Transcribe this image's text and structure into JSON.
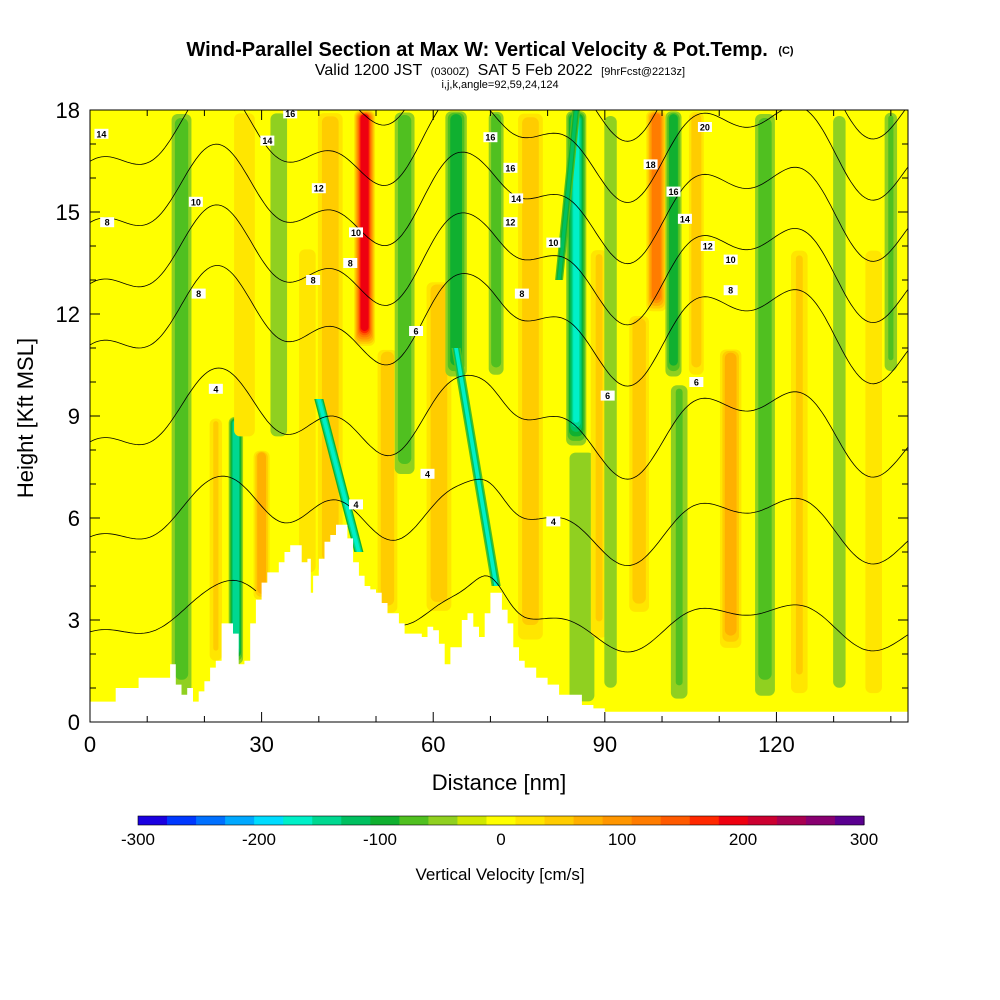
{
  "chart_data": {
    "type": "heatmap",
    "title": "Wind-Parallel Section at Max W: Vertical Velocity & Pot.Temp.",
    "title_tag": "(C)",
    "subtitle": {
      "prefix": "Valid 1200 JST",
      "utc": "(0300Z)",
      "date": "SAT 5 Feb 2022",
      "forecast": "[9hrFcst@2213z]"
    },
    "params_line": "i,j,k,angle=92,59,24,124",
    "xlabel": "Distance [nm]",
    "ylabel": "Height [Kft MSL]",
    "xlim": [
      0,
      143
    ],
    "ylim": [
      0,
      18
    ],
    "x_ticks": [
      "0",
      "30",
      "60",
      "90",
      "120"
    ],
    "y_ticks": [
      "0",
      "3",
      "6",
      "9",
      "12",
      "15",
      "18"
    ],
    "colorbar": {
      "title": "Vertical Velocity [cm/s]",
      "range": [
        -300,
        300
      ],
      "step": 25,
      "tick_labels": [
        "-300",
        "-200",
        "-100",
        "0",
        "100",
        "200",
        "300"
      ],
      "colors": [
        "#1a00e0",
        "#0038ff",
        "#0070ff",
        "#00a8ff",
        "#00dcff",
        "#00f0c8",
        "#00d890",
        "#00c060",
        "#10b030",
        "#50c020",
        "#90d020",
        "#d0e800",
        "#ffff00",
        "#ffe600",
        "#ffcc00",
        "#ffb000",
        "#ff9600",
        "#ff7c00",
        "#ff5a00",
        "#ff2800",
        "#ee0010",
        "#cc0030",
        "#a80050",
        "#880070",
        "#5a0090"
      ]
    },
    "velocity_bands": [
      {
        "x": 16,
        "w": 4,
        "max": -70,
        "bottom": 0.3,
        "top": 18
      },
      {
        "x": 22,
        "w": 3,
        "max": 50,
        "bottom": 1.5,
        "top": 9
      },
      {
        "x": 25.5,
        "w": 2.5,
        "max": -130,
        "bottom": 1.6,
        "top": 9
      },
      {
        "x": 30,
        "w": 3,
        "max": 80,
        "bottom": 3.5,
        "top": 8
      },
      {
        "x": 27,
        "w": 5,
        "max": 40,
        "bottom": 8,
        "top": 18
      },
      {
        "x": 33,
        "w": 4,
        "max": -40,
        "bottom": 8,
        "top": 18
      },
      {
        "x": 38,
        "w": 4,
        "max": 40,
        "bottom": 4,
        "top": 14
      },
      {
        "x": 42,
        "w": 5,
        "max": 60,
        "bottom": 4,
        "top": 18
      },
      {
        "x": 48,
        "w": 3.5,
        "max": 210,
        "bottom": 11,
        "top": 18
      },
      {
        "x": 52,
        "w": 4,
        "max": 60,
        "bottom": 3,
        "top": 11
      },
      {
        "x": 55,
        "w": 4,
        "max": -60,
        "bottom": 7,
        "top": 18
      },
      {
        "x": 61,
        "w": 5,
        "max": 70,
        "bottom": 3,
        "top": 13
      },
      {
        "x": 64,
        "w": 4,
        "max": -80,
        "bottom": 10,
        "top": 18
      },
      {
        "x": 71,
        "w": 3,
        "max": -60,
        "bottom": 10,
        "top": 18
      },
      {
        "x": 77,
        "w": 5,
        "max": 60,
        "bottom": 2,
        "top": 18
      },
      {
        "x": 85,
        "w": 3.5,
        "max": -150,
        "bottom": 8,
        "top": 18
      },
      {
        "x": 86,
        "w": 6,
        "max": -40,
        "bottom": 0.3,
        "top": 8
      },
      {
        "x": 89,
        "w": 4,
        "max": 50,
        "bottom": 2,
        "top": 14
      },
      {
        "x": 91,
        "w": 3,
        "max": -40,
        "bottom": 0.3,
        "top": 18
      },
      {
        "x": 96,
        "w": 4,
        "max": 60,
        "bottom": 3,
        "top": 12
      },
      {
        "x": 99,
        "w": 3.5,
        "max": 130,
        "bottom": 12,
        "top": 18
      },
      {
        "x": 102,
        "w": 3,
        "max": -90,
        "bottom": 10,
        "top": 18
      },
      {
        "x": 103,
        "w": 4,
        "max": -50,
        "bottom": 0.3,
        "top": 10
      },
      {
        "x": 106,
        "w": 3,
        "max": 60,
        "bottom": 10,
        "top": 18
      },
      {
        "x": 112,
        "w": 4,
        "max": 90,
        "bottom": 2,
        "top": 11
      },
      {
        "x": 118,
        "w": 4,
        "max": -60,
        "bottom": 0.3,
        "top": 18
      },
      {
        "x": 124,
        "w": 4,
        "max": 50,
        "bottom": 0.3,
        "top": 14
      },
      {
        "x": 131,
        "w": 3,
        "max": -40,
        "bottom": 0.3,
        "top": 18
      },
      {
        "x": 137,
        "w": 4,
        "max": 40,
        "bottom": 0.3,
        "top": 14
      },
      {
        "x": 140,
        "w": 3,
        "max": -50,
        "bottom": 10,
        "top": 18
      }
    ],
    "slanted_bands": [
      {
        "x0": 40,
        "y0": 9.5,
        "x1": 47,
        "y1": 5.0,
        "w": 1.6,
        "value": -170
      },
      {
        "x0": 64,
        "y0": 11.0,
        "x1": 71,
        "y1": 4.0,
        "w": 1.6,
        "value": -150
      },
      {
        "x0": 85,
        "y0": 18.0,
        "x1": 82,
        "y1": 13.0,
        "w": 1.4,
        "value": -120
      }
    ],
    "terrain": {
      "x": [
        0,
        4,
        4.5,
        8,
        8.5,
        12,
        14,
        15,
        16,
        17,
        18,
        19,
        20,
        21,
        22,
        23,
        24,
        25,
        26,
        27,
        28,
        29,
        30,
        31,
        33,
        34,
        35,
        36,
        37,
        38,
        38.6,
        39,
        40,
        41,
        42,
        43,
        44,
        45,
        46,
        47,
        48,
        49,
        50,
        51,
        52,
        54,
        55,
        56,
        57,
        58,
        59,
        60,
        61,
        62,
        63,
        64,
        65,
        66,
        67,
        68,
        69,
        70,
        71,
        72,
        73,
        74,
        75,
        76,
        78,
        80,
        82,
        84,
        86,
        88,
        90,
        92,
        95,
        143
      ],
      "h": [
        0.6,
        0.6,
        1.0,
        1.0,
        1.3,
        1.3,
        1.7,
        1.1,
        0.8,
        1.0,
        0.6,
        0.9,
        1.2,
        1.6,
        1.8,
        2.9,
        2.9,
        2.6,
        1.7,
        1.8,
        2.9,
        3.6,
        4.1,
        4.4,
        4.7,
        5.0,
        5.2,
        5.2,
        4.7,
        4.8,
        3.8,
        4.3,
        4.8,
        5.3,
        5.5,
        5.8,
        5.8,
        5.4,
        4.7,
        4.3,
        4.0,
        3.9,
        3.8,
        3.5,
        3.2,
        2.9,
        2.6,
        2.6,
        2.6,
        2.5,
        2.8,
        2.7,
        2.3,
        1.7,
        2.2,
        2.2,
        3.0,
        3.2,
        2.8,
        2.5,
        3.2,
        3.8,
        3.8,
        3.3,
        2.9,
        2.2,
        1.8,
        1.6,
        1.3,
        1.1,
        0.8,
        0.8,
        0.5,
        0.4,
        0.3,
        0.3,
        0.3,
        0.3
      ]
    },
    "theta_levels": [
      2,
      4,
      6,
      8,
      10,
      12,
      14,
      16,
      18,
      20
    ],
    "contour_labels": [
      {
        "x": 2,
        "y": 17.3,
        "text": "14"
      },
      {
        "x": 18.5,
        "y": 15.3,
        "text": "10"
      },
      {
        "x": 3,
        "y": 14.7,
        "text": "8"
      },
      {
        "x": 19,
        "y": 12.6,
        "text": "8"
      },
      {
        "x": 22,
        "y": 9.8,
        "text": "4"
      },
      {
        "x": 35,
        "y": 17.9,
        "text": "16"
      },
      {
        "x": 31,
        "y": 17.1,
        "text": "14"
      },
      {
        "x": 40,
        "y": 15.7,
        "text": "12"
      },
      {
        "x": 39,
        "y": 13.0,
        "text": "8"
      },
      {
        "x": 46.5,
        "y": 14.4,
        "text": "10"
      },
      {
        "x": 45.5,
        "y": 13.5,
        "text": "8"
      },
      {
        "x": 46.5,
        "y": 6.4,
        "text": "4"
      },
      {
        "x": 57,
        "y": 11.5,
        "text": "6"
      },
      {
        "x": 59,
        "y": 7.3,
        "text": "4"
      },
      {
        "x": 70,
        "y": 17.2,
        "text": "16"
      },
      {
        "x": 73.5,
        "y": 16.3,
        "text": "16"
      },
      {
        "x": 74.5,
        "y": 15.4,
        "text": "14"
      },
      {
        "x": 73.5,
        "y": 14.7,
        "text": "12"
      },
      {
        "x": 81,
        "y": 14.1,
        "text": "10"
      },
      {
        "x": 75.5,
        "y": 12.6,
        "text": "8"
      },
      {
        "x": 81,
        "y": 5.9,
        "text": "4"
      },
      {
        "x": 90.5,
        "y": 9.6,
        "text": "6"
      },
      {
        "x": 98,
        "y": 16.4,
        "text": "18"
      },
      {
        "x": 102,
        "y": 15.6,
        "text": "16"
      },
      {
        "x": 104,
        "y": 14.8,
        "text": "14"
      },
      {
        "x": 108,
        "y": 14.0,
        "text": "12"
      },
      {
        "x": 112,
        "y": 13.6,
        "text": "10"
      },
      {
        "x": 112,
        "y": 12.7,
        "text": "8"
      },
      {
        "x": 106,
        "y": 10.0,
        "text": "6"
      },
      {
        "x": 107.5,
        "y": 17.5,
        "text": "20"
      }
    ]
  }
}
